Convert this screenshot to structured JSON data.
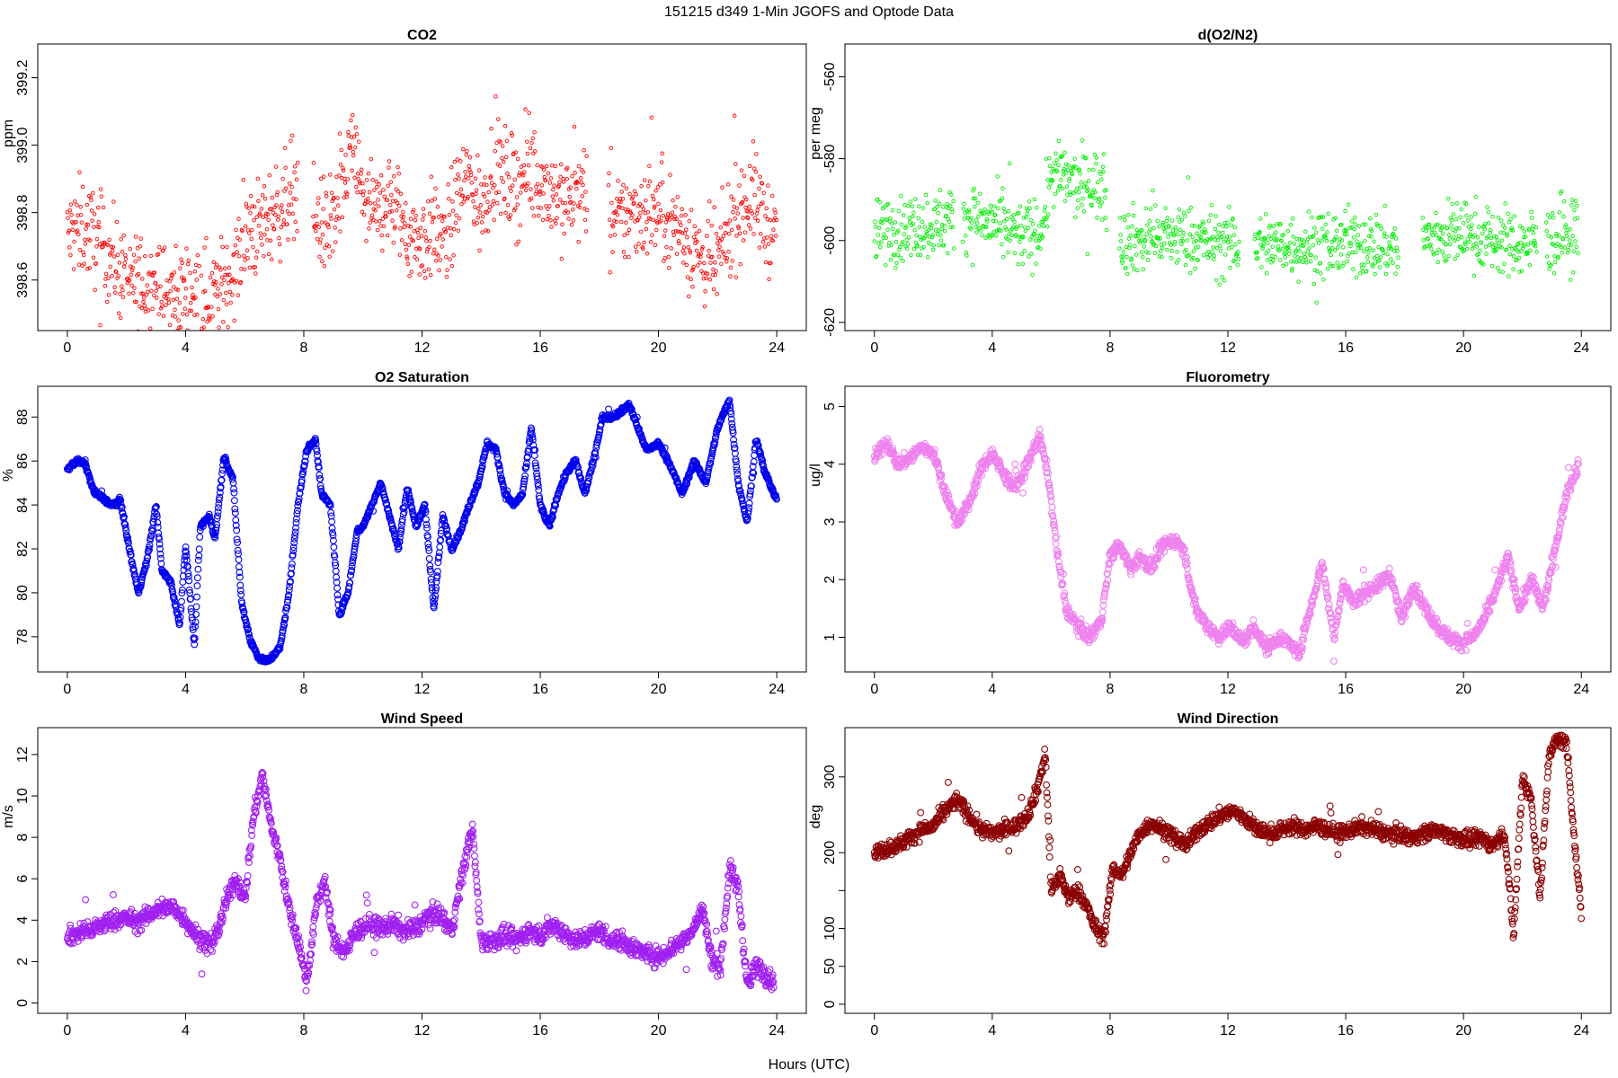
{
  "figure": {
    "title": "151215   d349   1-Min  JGOFS and Optode Data",
    "xlabel": "Hours (UTC)"
  },
  "chart_data": [
    {
      "id": "co2",
      "type": "scatter",
      "title": "CO2",
      "xlabel": "",
      "ylabel": "ppm",
      "color": "#ff0000",
      "marker_size": "small",
      "xlim": [
        -1,
        25
      ],
      "ylim": [
        398.45,
        399.3
      ],
      "xticks": [
        0,
        4,
        8,
        12,
        16,
        20,
        24
      ],
      "yticks": [
        398.6,
        398.8,
        399.0,
        399.2
      ],
      "ytick_labels": [
        "398.6",
        "398.8",
        "399.0",
        "399.2"
      ],
      "gaps": [
        [
          7.8,
          8.3
        ],
        [
          17.6,
          18.3
        ]
      ],
      "noise": 0.07,
      "series": [
        {
          "name": "CO2",
          "x": [
            0,
            0.4,
            0.8,
            1.2,
            1.6,
            2,
            2.5,
            3,
            3.4,
            3.8,
            4.2,
            4.6,
            5,
            5.4,
            5.8,
            6.2,
            6.6,
            7,
            7.4,
            7.7,
            8.4,
            8.8,
            9.2,
            9.6,
            10,
            10.4,
            10.8,
            11.2,
            11.6,
            12,
            12.4,
            12.8,
            13.2,
            13.6,
            14,
            14.4,
            14.8,
            15.2,
            15.6,
            16,
            16.4,
            16.8,
            17.2,
            17.5,
            18.4,
            18.8,
            19.2,
            19.6,
            20,
            20.4,
            20.8,
            21.2,
            21.6,
            22,
            22.4,
            22.8,
            23.2,
            23.6,
            24
          ],
          "y": [
            398.73,
            398.76,
            398.74,
            398.7,
            398.66,
            398.58,
            398.6,
            398.6,
            398.54,
            398.56,
            398.58,
            398.55,
            398.56,
            398.6,
            398.66,
            398.74,
            398.76,
            398.8,
            398.83,
            398.9,
            398.78,
            398.75,
            398.8,
            399.0,
            398.85,
            398.78,
            398.85,
            398.8,
            398.73,
            398.72,
            398.75,
            398.7,
            398.85,
            398.9,
            398.8,
            398.95,
            398.9,
            398.88,
            398.92,
            398.9,
            398.86,
            398.83,
            398.85,
            398.87,
            398.76,
            398.78,
            398.8,
            398.81,
            398.8,
            398.78,
            398.74,
            398.7,
            398.64,
            398.65,
            398.75,
            398.82,
            398.85,
            398.78,
            398.72
          ]
        }
      ]
    },
    {
      "id": "o2n2",
      "type": "scatter",
      "title": "d(O2/N2)",
      "xlabel": "",
      "ylabel": "per meg",
      "color": "#00ee00",
      "marker_size": "small",
      "xlim": [
        -1,
        25
      ],
      "ylim": [
        -622,
        -552
      ],
      "xticks": [
        0,
        4,
        8,
        12,
        16,
        20,
        24
      ],
      "yticks": [
        -620,
        -600,
        -580,
        -560
      ],
      "ytick_labels": [
        "-620",
        "-600",
        "-580",
        "-560"
      ],
      "gaps": [
        [
          2.7,
          3.0
        ],
        [
          7.9,
          8.3
        ],
        [
          12.4,
          12.9
        ],
        [
          17.8,
          18.6
        ],
        [
          22.5,
          22.8
        ]
      ],
      "noise": 4.0,
      "series": [
        {
          "name": "d(O2/N2)",
          "x": [
            0,
            1,
            2,
            2.6,
            3.1,
            4,
            5,
            5.7,
            6,
            6.5,
            7,
            7.5,
            7.8,
            8.4,
            9,
            10,
            11,
            12,
            12.3,
            13,
            14,
            15,
            16,
            17,
            17.7,
            18.7,
            19,
            20,
            21,
            22,
            22.4,
            22.9,
            23.5,
            23.9
          ],
          "y": [
            -598,
            -597,
            -596,
            -595,
            -594,
            -596,
            -599,
            -597,
            -584,
            -585,
            -587,
            -586,
            -588,
            -600,
            -600,
            -599,
            -600,
            -601,
            -601,
            -601,
            -601,
            -601,
            -601,
            -601,
            -602,
            -600,
            -599,
            -598,
            -600,
            -601,
            -600,
            -600,
            -599,
            -598
          ]
        }
      ]
    },
    {
      "id": "o2sat",
      "type": "scatter",
      "title": "O2 Saturation",
      "xlabel": "",
      "ylabel": "%",
      "color": "#0000ee",
      "marker_size": "large",
      "xlim": [
        -1,
        25
      ],
      "ylim": [
        76.4,
        89.4
      ],
      "xticks": [
        0,
        4,
        8,
        12,
        16,
        20,
        24
      ],
      "yticks": [
        78,
        80,
        82,
        84,
        86,
        88
      ],
      "ytick_labels": [
        "78",
        "80",
        "82",
        "84",
        "86",
        "88"
      ],
      "gaps": [],
      "noise": 0.12,
      "series": [
        {
          "name": "O2 Saturation",
          "x": [
            0,
            0.3,
            0.6,
            0.9,
            1.2,
            1.5,
            1.8,
            2.1,
            2.4,
            2.7,
            3,
            3.2,
            3.5,
            3.8,
            4.0,
            4.3,
            4.5,
            4.8,
            5.0,
            5.3,
            5.6,
            5.9,
            6.2,
            6.5,
            6.8,
            7.2,
            7.5,
            7.8,
            8.1,
            8.4,
            8.6,
            8.9,
            9.2,
            9.5,
            9.8,
            10.0,
            10.3,
            10.6,
            10.9,
            11.2,
            11.5,
            11.8,
            12.1,
            12.4,
            12.7,
            13,
            13.3,
            13.6,
            13.9,
            14.2,
            14.5,
            14.8,
            15.1,
            15.4,
            15.7,
            16,
            16.3,
            16.6,
            16.9,
            17.2,
            17.5,
            17.8,
            18.1,
            18.4,
            18.7,
            19,
            19.3,
            19.6,
            20,
            20.4,
            20.8,
            21.2,
            21.6,
            22,
            22.4,
            22.7,
            23,
            23.3,
            23.6,
            24
          ],
          "y": [
            85.6,
            86.0,
            85.9,
            84.6,
            84.3,
            84.0,
            84.2,
            82.0,
            80.0,
            81.5,
            84.0,
            81.0,
            80.5,
            78.5,
            82.2,
            77.6,
            83.0,
            83.5,
            82.5,
            86.2,
            85.2,
            79.5,
            77.8,
            77.0,
            76.9,
            77.5,
            80.0,
            84.0,
            86.5,
            87.0,
            84.5,
            84.0,
            79.0,
            80.0,
            82.8,
            83.0,
            84.0,
            85.0,
            83.5,
            82.0,
            84.8,
            83.0,
            84.0,
            79.2,
            83.5,
            82.0,
            82.8,
            84.0,
            85.0,
            86.8,
            86.5,
            84.5,
            84.0,
            84.5,
            87.5,
            84.0,
            83.0,
            84.5,
            85.5,
            86.0,
            84.5,
            86.0,
            88.0,
            88.0,
            88.2,
            88.6,
            87.5,
            86.5,
            86.8,
            85.8,
            84.5,
            86.0,
            85.0,
            87.5,
            88.8,
            85.0,
            83.2,
            87.0,
            85.5,
            84.2
          ]
        }
      ]
    },
    {
      "id": "fluor",
      "type": "scatter",
      "title": "Fluorometry",
      "xlabel": "",
      "ylabel": "ug/l",
      "color": "#ee82ee",
      "marker_size": "large",
      "xlim": [
        -1,
        25
      ],
      "ylim": [
        0.4,
        5.35
      ],
      "xticks": [
        0,
        4,
        8,
        12,
        16,
        20,
        24
      ],
      "yticks": [
        1,
        2,
        3,
        4,
        5
      ],
      "ytick_labels": [
        "1",
        "2",
        "3",
        "4",
        "5"
      ],
      "gaps": [],
      "noise": 0.12,
      "series": [
        {
          "name": "Fluorometry",
          "x": [
            0,
            0.4,
            0.8,
            1.2,
            1.6,
            2,
            2.4,
            2.8,
            3.2,
            3.6,
            4,
            4.4,
            4.8,
            5.2,
            5.6,
            5.9,
            6.2,
            6.5,
            6.9,
            7.3,
            7.7,
            8.0,
            8.3,
            8.7,
            9.0,
            9.4,
            9.8,
            10.2,
            10.5,
            10.9,
            11.3,
            11.7,
            12.1,
            12.5,
            12.9,
            13.3,
            13.7,
            14.1,
            14.4,
            14.8,
            15.2,
            15.6,
            15.9,
            16.3,
            16.7,
            17.1,
            17.5,
            17.9,
            18.3,
            18.7,
            19.1,
            19.5,
            19.9,
            20.3,
            20.7,
            21.1,
            21.5,
            21.9,
            22.3,
            22.7,
            23.1,
            23.5,
            23.9
          ],
          "y": [
            4.1,
            4.4,
            4.0,
            4.1,
            4.3,
            4.2,
            3.5,
            3.0,
            3.3,
            3.9,
            4.2,
            3.8,
            3.6,
            4.0,
            4.5,
            3.8,
            2.5,
            1.5,
            1.2,
            1.0,
            1.3,
            2.4,
            2.6,
            2.2,
            2.4,
            2.2,
            2.6,
            2.7,
            2.5,
            1.5,
            1.2,
            1.0,
            1.2,
            0.9,
            1.2,
            0.8,
            1.0,
            0.9,
            0.7,
            1.5,
            2.3,
            1.0,
            1.9,
            1.6,
            1.8,
            1.9,
            2.1,
            1.3,
            1.9,
            1.5,
            1.2,
            1.0,
            0.9,
            1.0,
            1.3,
            1.8,
            2.4,
            1.5,
            2.0,
            1.5,
            2.5,
            3.5,
            4.0
          ]
        }
      ]
    },
    {
      "id": "wspd",
      "type": "scatter",
      "title": "Wind Speed",
      "xlabel": "",
      "ylabel": "m/s",
      "color": "#a020f0",
      "marker_size": "large",
      "xlim": [
        -1,
        25
      ],
      "ylim": [
        -0.5,
        13.3
      ],
      "xticks": [
        0,
        4,
        8,
        12,
        16,
        20,
        24
      ],
      "yticks": [
        0,
        2,
        4,
        6,
        8,
        10,
        12
      ],
      "ytick_labels": [
        "0",
        "2",
        "4",
        "6",
        "8",
        "10",
        "12"
      ],
      "gaps": [],
      "noise": 0.45,
      "series": [
        {
          "name": "Wind Speed",
          "x": [
            0,
            0.4,
            0.8,
            1.2,
            1.6,
            2,
            2.4,
            2.8,
            3.2,
            3.6,
            4,
            4.4,
            4.8,
            5.1,
            5.4,
            5.7,
            6,
            6.3,
            6.6,
            6.9,
            7.2,
            7.5,
            7.8,
            8.1,
            8.4,
            8.7,
            9.0,
            9.4,
            9.8,
            10.2,
            10.6,
            11.0,
            11.4,
            11.8,
            12.2,
            12.6,
            13.0,
            13.4,
            13.7,
            14.0,
            14.4,
            14.8,
            15.2,
            15.6,
            16,
            16.4,
            16.8,
            17.2,
            17.6,
            18,
            18.4,
            18.8,
            19.2,
            19.6,
            20,
            20.4,
            20.8,
            21.2,
            21.5,
            21.8,
            22.1,
            22.4,
            22.7,
            23.0,
            23.3,
            23.6,
            23.9
          ],
          "y": [
            3.2,
            3.4,
            3.5,
            3.8,
            4.0,
            4.1,
            3.9,
            4.3,
            4.6,
            4.6,
            4.0,
            3.2,
            2.8,
            3.5,
            5.0,
            6.0,
            5.0,
            9.0,
            11.0,
            8.5,
            7.0,
            4.5,
            3.0,
            1.0,
            4.5,
            6.0,
            3.0,
            2.5,
            3.5,
            3.8,
            3.6,
            3.8,
            3.5,
            3.6,
            4.2,
            4.3,
            3.5,
            6.5,
            8.5,
            3.0,
            3.0,
            3.2,
            3.0,
            3.5,
            3.2,
            3.8,
            3.4,
            3.0,
            3.2,
            3.5,
            3.0,
            3.0,
            2.6,
            2.4,
            2.2,
            2.6,
            3.0,
            3.6,
            4.6,
            2.0,
            1.8,
            6.5,
            5.5,
            0.8,
            1.8,
            1.4,
            1.0
          ]
        }
      ]
    },
    {
      "id": "wdir",
      "type": "scatter",
      "title": "Wind Direction",
      "xlabel": "",
      "ylabel": "deg",
      "color": "#8b0000",
      "marker_size": "large",
      "xlim": [
        -1,
        25
      ],
      "ylim": [
        -12,
        365
      ],
      "xticks": [
        0,
        4,
        8,
        12,
        16,
        20,
        24
      ],
      "yticks": [
        0,
        50,
        100,
        150,
        200,
        300
      ],
      "ytick_labels": [
        "0",
        "50",
        "100",
        "",
        "200",
        "300"
      ],
      "gaps": [],
      "noise": 10,
      "series": [
        {
          "name": "Wind Direction",
          "x": [
            0,
            0.4,
            0.8,
            1.2,
            1.6,
            2,
            2.4,
            2.8,
            3.2,
            3.6,
            4,
            4.4,
            4.8,
            5.2,
            5.5,
            5.8,
            6.0,
            6.3,
            6.6,
            6.9,
            7.2,
            7.5,
            7.8,
            8.1,
            8.4,
            8.7,
            9.0,
            9.4,
            9.8,
            10.2,
            10.6,
            11.0,
            11.4,
            11.8,
            12.2,
            12.6,
            13.0,
            13.4,
            13.8,
            14.2,
            14.6,
            15,
            15.4,
            15.8,
            16.2,
            16.6,
            17,
            17.4,
            17.8,
            18.2,
            18.6,
            19,
            19.4,
            19.8,
            20.2,
            20.6,
            21,
            21.4,
            21.7,
            22.0,
            22.3,
            22.6,
            22.9,
            23.2,
            23.5,
            23.8,
            24.0
          ],
          "y": [
            200,
            205,
            210,
            220,
            230,
            235,
            255,
            270,
            250,
            230,
            225,
            230,
            235,
            250,
            280,
            330,
            150,
            170,
            140,
            150,
            130,
            100,
            90,
            180,
            170,
            200,
            225,
            240,
            230,
            220,
            210,
            230,
            240,
            250,
            255,
            245,
            230,
            225,
            230,
            235,
            230,
            235,
            230,
            225,
            230,
            235,
            230,
            225,
            225,
            220,
            225,
            230,
            225,
            220,
            215,
            220,
            210,
            225,
            90,
            300,
            270,
            140,
            330,
            350,
            345,
            200,
            120
          ]
        }
      ]
    }
  ]
}
